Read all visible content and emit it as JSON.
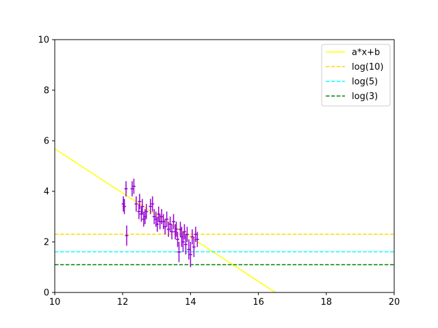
{
  "chart_data": {
    "type": "scatter",
    "title": "",
    "xlabel": "",
    "ylabel": "",
    "xlim": [
      10,
      20
    ],
    "ylim": [
      0,
      10
    ],
    "xticks": [
      "10",
      "12",
      "14",
      "16",
      "18",
      "20"
    ],
    "yticks": [
      "0",
      "2",
      "4",
      "6",
      "8",
      "10"
    ],
    "grid": false,
    "legend_position": "top-right",
    "lines": [
      {
        "name": "a*x+b",
        "kind": "linear",
        "x": [
          10,
          16.5
        ],
        "y": [
          5.68,
          0.0
        ],
        "color": "#ffff00",
        "dash": "solid"
      },
      {
        "name": "log(10)",
        "kind": "horizontal",
        "y": 2.303,
        "color": "#ffd700",
        "dash": "dashed"
      },
      {
        "name": "log(5)",
        "kind": "horizontal",
        "y": 1.609,
        "color": "#00ffff",
        "dash": "dashed"
      },
      {
        "name": "log(3)",
        "kind": "horizontal",
        "y": 1.099,
        "color": "#008000",
        "dash": "dashed"
      }
    ],
    "errorbar_series": {
      "color": "#9400d3",
      "x": [
        12.02,
        12.05,
        12.1,
        12.12,
        12.28,
        12.33,
        12.4,
        12.48,
        12.5,
        12.55,
        12.58,
        12.62,
        12.66,
        12.7,
        12.82,
        12.88,
        12.93,
        12.98,
        13.02,
        13.06,
        13.1,
        13.15,
        13.2,
        13.25,
        13.3,
        13.35,
        13.4,
        13.45,
        13.5,
        13.55,
        13.58,
        13.62,
        13.66,
        13.7,
        13.74,
        13.78,
        13.82,
        13.86,
        13.9,
        13.95,
        14.0,
        14.05,
        14.1,
        14.15,
        14.2
      ],
      "y": [
        3.5,
        3.4,
        4.1,
        2.25,
        4.1,
        4.2,
        3.5,
        3.2,
        3.6,
        3.1,
        3.4,
        2.9,
        3.0,
        3.2,
        3.4,
        3.5,
        3.0,
        2.9,
        2.7,
        3.1,
        2.8,
        3.0,
        2.8,
        2.6,
        2.9,
        2.5,
        2.7,
        2.4,
        2.8,
        2.4,
        2.5,
        2.1,
        1.6,
        2.5,
        2.2,
        2.0,
        2.4,
        1.9,
        2.3,
        1.7,
        1.5,
        2.2,
        1.8,
        2.3,
        2.1
      ],
      "yerr": [
        0.3,
        0.3,
        0.3,
        0.4,
        0.3,
        0.3,
        0.3,
        0.3,
        0.3,
        0.3,
        0.3,
        0.3,
        0.3,
        0.3,
        0.3,
        0.3,
        0.3,
        0.3,
        0.3,
        0.3,
        0.3,
        0.3,
        0.3,
        0.3,
        0.3,
        0.3,
        0.3,
        0.3,
        0.3,
        0.3,
        0.3,
        0.3,
        0.4,
        0.3,
        0.4,
        0.4,
        0.3,
        0.4,
        0.3,
        0.4,
        0.5,
        0.3,
        0.4,
        0.3,
        0.3
      ],
      "xerr": 0.05
    }
  }
}
